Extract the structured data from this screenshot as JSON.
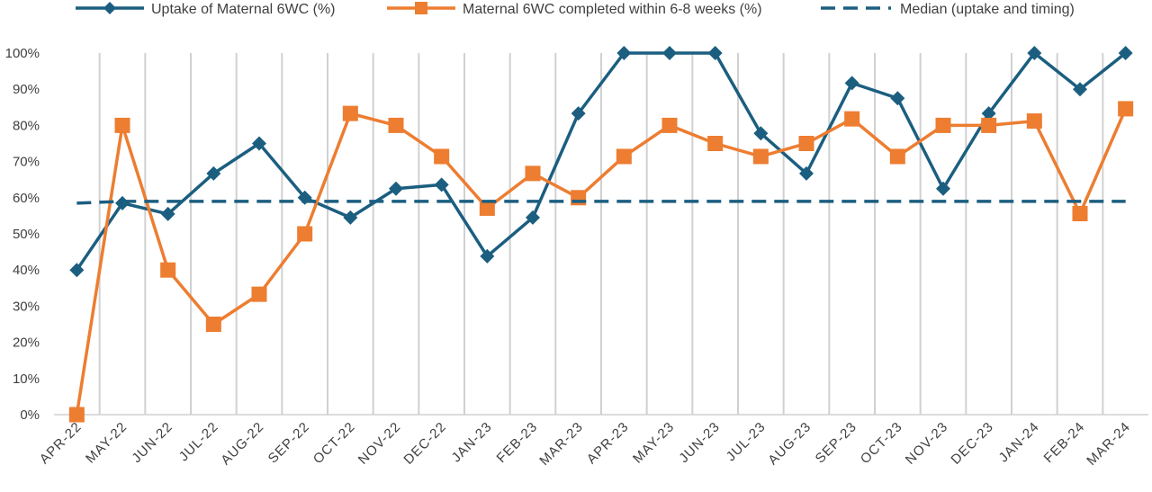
{
  "chart_data": {
    "type": "line",
    "categories": [
      "APR-22",
      "MAY-22",
      "JUN-22",
      "JUL-22",
      "AUG-22",
      "SEP-22",
      "OCT-22",
      "NOV-22",
      "DEC-22",
      "JAN-23",
      "FEB-23",
      "MAR-23",
      "APR-23",
      "MAY-23",
      "JUN-23",
      "JUL-23",
      "AUG-23",
      "SEP-23",
      "OCT-23",
      "NOV-23",
      "DEC-23",
      "JAN-24",
      "FEB-24",
      "MAR-24"
    ],
    "y_ticks": [
      "0%",
      "10%",
      "20%",
      "30%",
      "40%",
      "50%",
      "60%",
      "70%",
      "80%",
      "90%",
      "100%"
    ],
    "ylim": [
      0,
      100
    ],
    "grid": "vertical",
    "legend_position": "top",
    "series": [
      {
        "name": "Uptake of Maternal 6WC (%)",
        "color": "#1b5e80",
        "marker": "diamond",
        "values": [
          40,
          58.5,
          55.5,
          66.7,
          75,
          60,
          54.5,
          62.5,
          63.6,
          43.8,
          54.5,
          83.3,
          100,
          100,
          100,
          77.8,
          66.7,
          91.7,
          87.5,
          62.5,
          83.3,
          100,
          90,
          100
        ]
      },
      {
        "name": "Maternal 6WC completed within 6-8 weeks (%)",
        "color": "#ed7d31",
        "marker": "square",
        "values": [
          0,
          80,
          40,
          25,
          33.3,
          50,
          83.3,
          80,
          71.4,
          57.1,
          66.7,
          60,
          71.4,
          80,
          75,
          71.4,
          75,
          81.8,
          71.4,
          80,
          80,
          81.2,
          55.6,
          84.6
        ]
      },
      {
        "name": "Median (uptake and timing)",
        "color": "#1b5e80",
        "marker": "none",
        "style": "dashed",
        "values": [
          58.5,
          59,
          59,
          59,
          59,
          59,
          59,
          59,
          59,
          59,
          59,
          59,
          59,
          59,
          59,
          59,
          59,
          59,
          59,
          59,
          59,
          59,
          59,
          59
        ]
      }
    ]
  }
}
